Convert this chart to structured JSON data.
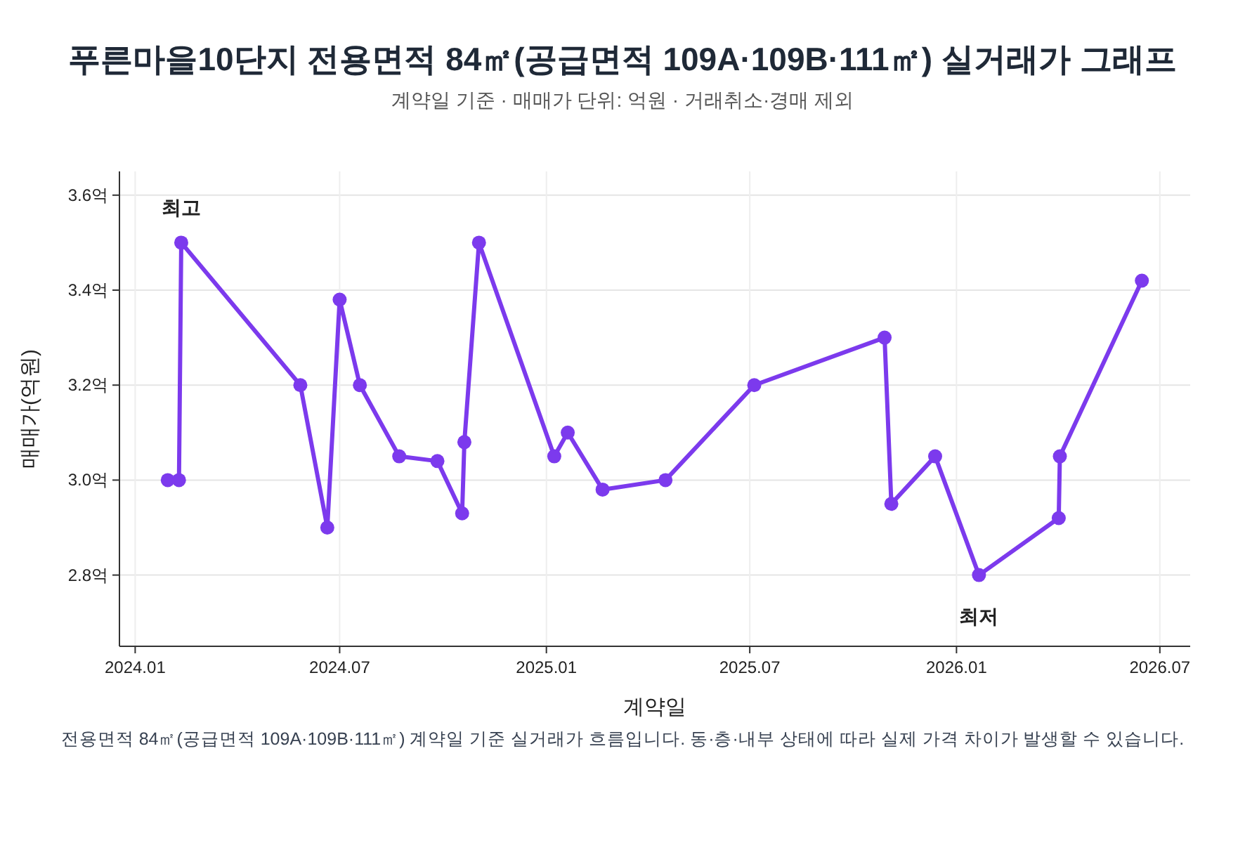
{
  "chart_data": {
    "type": "line",
    "title": "푸른마을10단지 전용면적 84㎡(공급면적 109A·109B·111㎡) 실거래가 그래프",
    "subtitle": "계약일 기준 · 매매가 단위: 억원 · 거래취소·경매 제외",
    "xlabel": "계약일",
    "ylabel": "매매가(억원)",
    "annotations": [
      {
        "text": "최고",
        "x": "2024-02-11",
        "y": 3.5
      },
      {
        "text": "최저",
        "x": "2026-01-21",
        "y": 2.8
      },
      "전용면적 84㎡(공급면적 109A·109B·111㎡) 계약일 기준 실거래가 흐름입니다. 동·층·내부 상태에 따라 실제 가격 차이가 발생할 수 있습니다."
    ],
    "x": [
      "2024-01-30",
      "2024-02-09",
      "2024-02-11",
      "2024-05-27",
      "2024-06-20",
      "2024-07-01",
      "2024-07-19",
      "2024-08-23",
      "2024-09-26",
      "2024-10-18",
      "2024-10-20",
      "2024-11-02",
      "2025-01-08",
      "2025-01-20",
      "2025-02-20",
      "2025-04-17",
      "2025-07-05",
      "2025-10-29",
      "2025-11-04",
      "2025-12-13",
      "2026-01-21",
      "2026-04-02",
      "2026-04-03",
      "2026-06-15"
    ],
    "series": [
      {
        "color": "#7c3aed",
        "values": [
          3.0,
          3.0,
          3.5,
          3.2,
          2.9,
          3.38,
          3.2,
          3.05,
          3.04,
          2.93,
          3.08,
          3.5,
          3.05,
          3.1,
          2.98,
          3.0,
          3.2,
          3.3,
          2.95,
          3.05,
          2.8,
          2.92,
          3.05,
          3.42
        ]
      }
    ],
    "xlim": [
      "2023-12-18",
      "2026-07-28"
    ],
    "ylim": [
      2.65,
      3.65
    ],
    "xticks": [
      {
        "value": "2024-01",
        "label": "2024.01"
      },
      {
        "value": "2024-07",
        "label": "2024.07"
      },
      {
        "value": "2025-01",
        "label": "2025.01"
      },
      {
        "value": "2025-07",
        "label": "2025.07"
      },
      {
        "value": "2026-01",
        "label": "2026.01"
      },
      {
        "value": "2026-07",
        "label": "2026.07"
      }
    ],
    "yticks": [
      {
        "value": 2.8,
        "label": "2.8억"
      },
      {
        "value": 3.0,
        "label": "3.0억"
      },
      {
        "value": 3.2,
        "label": "3.2억"
      },
      {
        "value": 3.4,
        "label": "3.4억"
      },
      {
        "value": 3.6,
        "label": "3.6억"
      }
    ],
    "grid": true,
    "marker": "circle"
  }
}
